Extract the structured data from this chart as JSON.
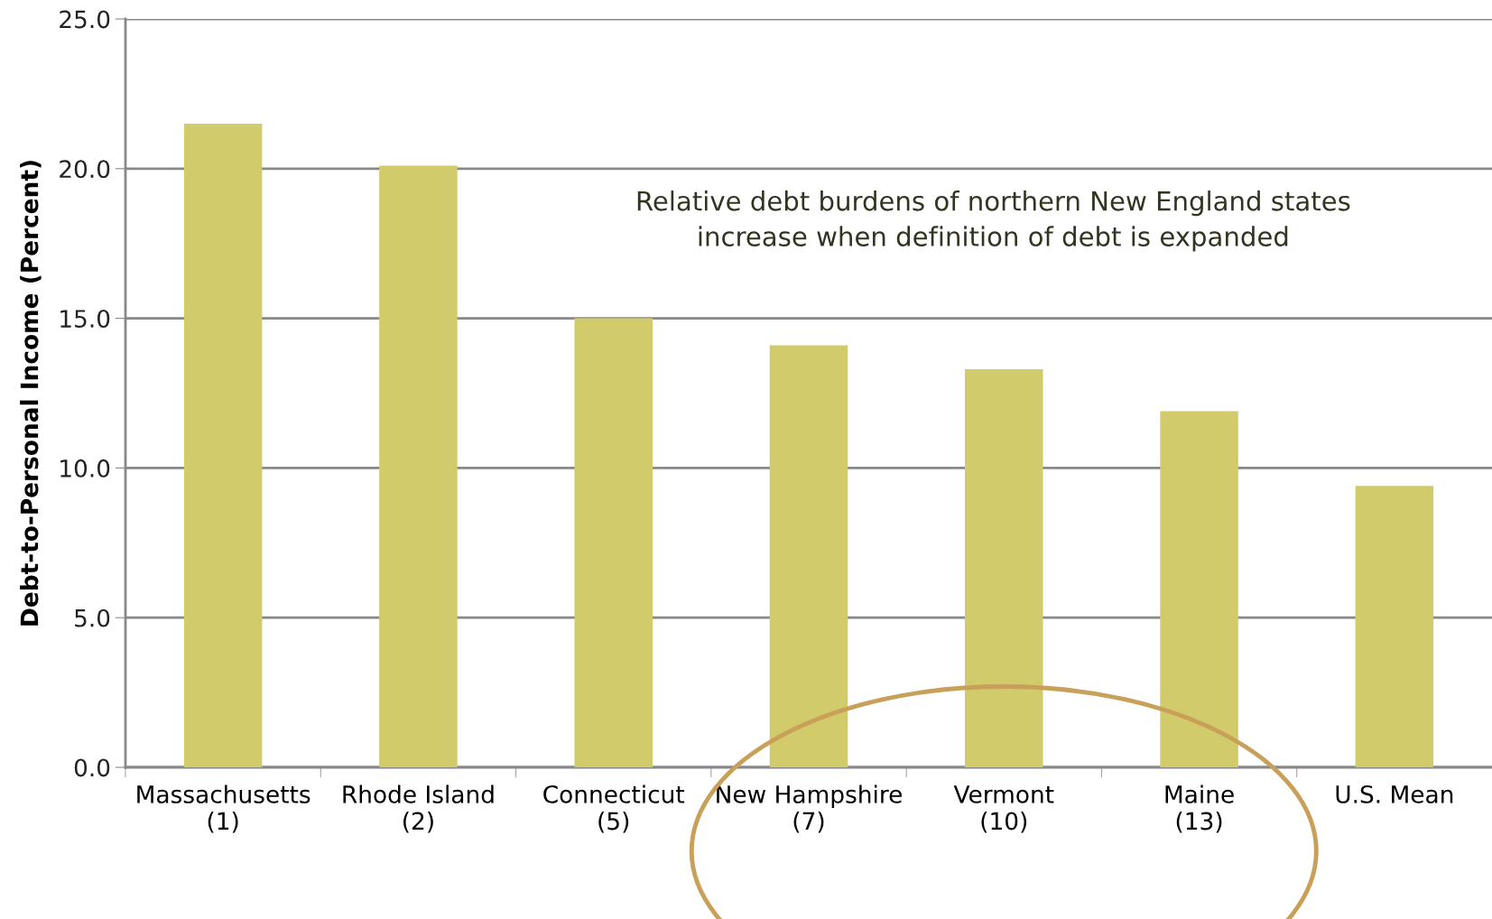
{
  "chart_data": {
    "type": "bar",
    "ylabel": "Debt-to-Personal Income (Percent)",
    "categories": [
      "Massachusetts\n(1)",
      "Rhode Island\n(2)",
      "Connecticut\n(5)",
      "New Hampshire\n(7)",
      "Vermont\n(10)",
      "Maine\n(13)",
      "U.S. Mean"
    ],
    "values": [
      21.5,
      20.1,
      15.0,
      14.1,
      13.3,
      11.9,
      9.4
    ],
    "color": "#d1cb6c",
    "ylim": [
      0,
      25
    ],
    "yticks": [
      {
        "value": 0,
        "label": "0.0"
      },
      {
        "value": 5,
        "label": "5.0"
      },
      {
        "value": 10,
        "label": "10.0"
      },
      {
        "value": 15,
        "label": "15.0"
      },
      {
        "value": 20,
        "label": "20.0"
      },
      {
        "value": 25,
        "label": "25.0"
      }
    ],
    "grid": "y",
    "annotations": [
      "Relative debt burdens of northern New England states\nincrease when definition of debt is expanded"
    ]
  }
}
